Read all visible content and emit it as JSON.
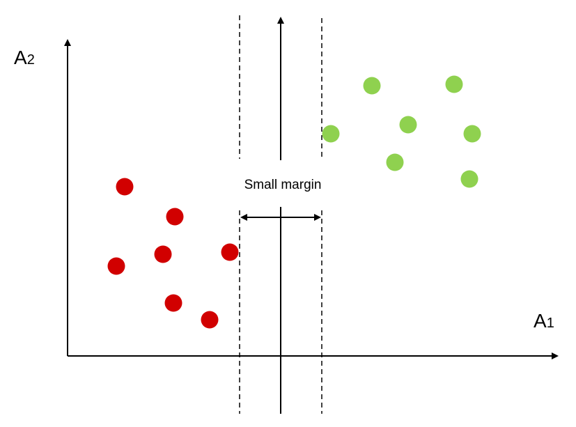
{
  "labels": {
    "axis_x": "A",
    "axis_x_sub": "1",
    "axis_y": "A",
    "axis_y_sub": "2",
    "margin": "Small margin"
  },
  "colors": {
    "class_red": "#d10000",
    "class_green": "#8fd14f",
    "line": "#000000"
  }
}
